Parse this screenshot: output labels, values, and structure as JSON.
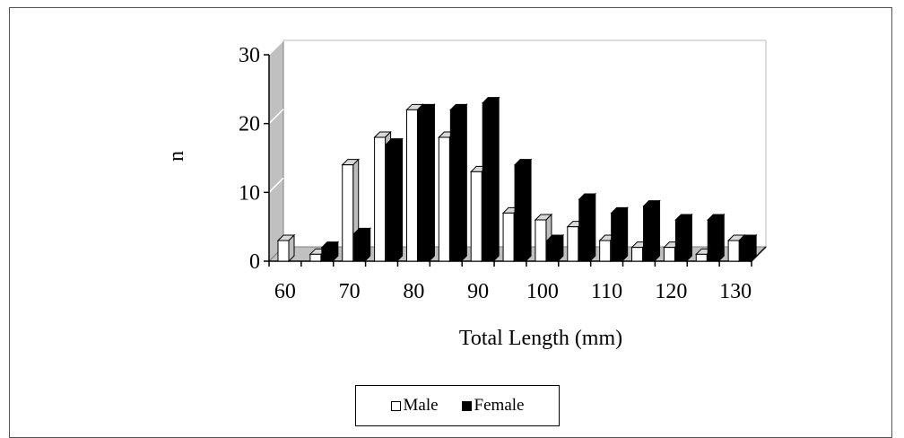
{
  "chart_data": {
    "type": "bar",
    "style": "3d-clustered-column",
    "categories": [
      "60",
      "65",
      "70",
      "75",
      "80",
      "85",
      "90",
      "95",
      "100",
      "105",
      "110",
      "115",
      "120",
      "125",
      "130"
    ],
    "series": [
      {
        "name": "Male",
        "fill": "#ffffff",
        "values": [
          3,
          1,
          14,
          18,
          22,
          18,
          13,
          7,
          6,
          5,
          3,
          2,
          2,
          1,
          3
        ]
      },
      {
        "name": "Female",
        "fill": "#000000",
        "values": [
          0,
          2,
          4,
          17,
          22,
          22,
          23,
          14,
          3,
          9,
          7,
          8,
          6,
          6,
          3
        ]
      }
    ],
    "x_tick_labels": [
      "60",
      "70",
      "80",
      "90",
      "100",
      "110",
      "120",
      "130"
    ],
    "y_ticks": [
      0,
      10,
      20,
      30
    ],
    "ylim": [
      0,
      30
    ],
    "xlabel": "Total Length (mm)",
    "ylabel": "n",
    "grid": false,
    "legend_position": "bottom",
    "colors": {
      "wall": "#c0c0c0",
      "wall_edge": "#808080",
      "floor": "#c0c0c0",
      "frame": "#555555"
    }
  },
  "legend": {
    "male_label": "Male",
    "female_label": "Female"
  }
}
